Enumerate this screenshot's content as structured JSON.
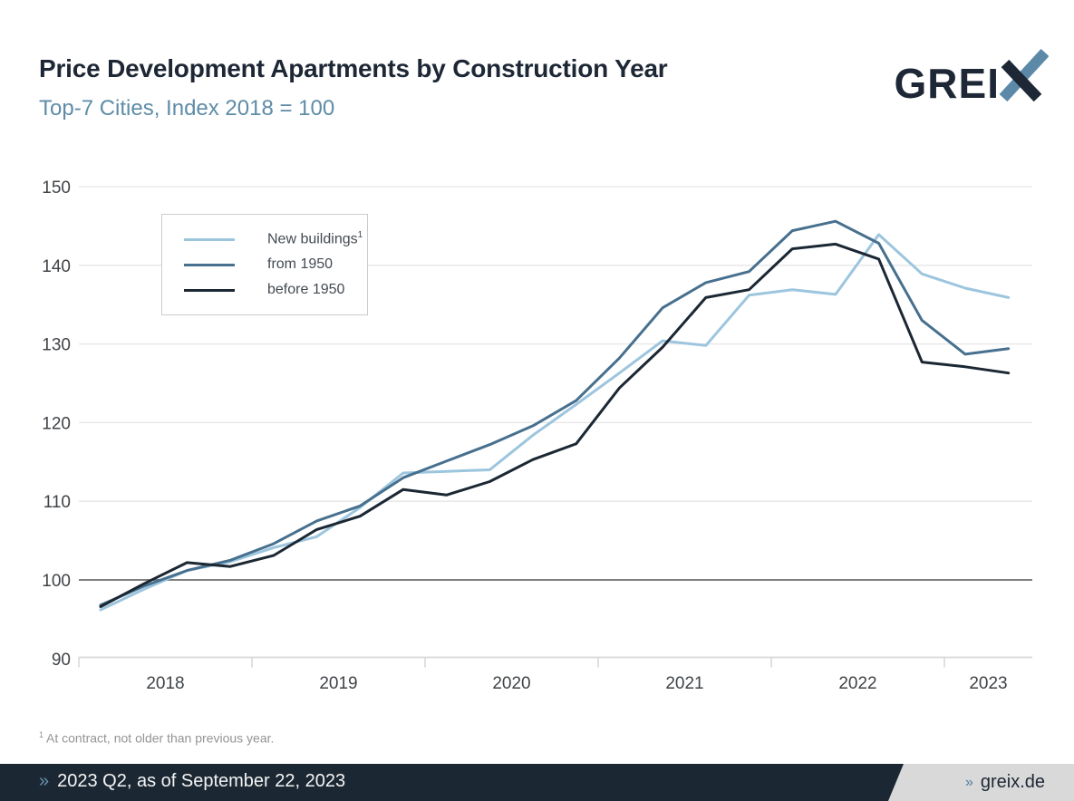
{
  "header": {
    "title": "Price Development Apartments by Construction Year",
    "subtitle": "Top-7 Cities, Index 2018 = 100",
    "logo_text": "GREI",
    "logo_letter": "X"
  },
  "chart_data": {
    "type": "line",
    "x": [
      "2018 Q1",
      "2018 Q2",
      "2018 Q3",
      "2018 Q4",
      "2019 Q1",
      "2019 Q2",
      "2019 Q3",
      "2019 Q4",
      "2020 Q1",
      "2020 Q2",
      "2020 Q3",
      "2020 Q4",
      "2021 Q1",
      "2021 Q2",
      "2021 Q3",
      "2021 Q4",
      "2022 Q1",
      "2022 Q2",
      "2022 Q3",
      "2022 Q4",
      "2023 Q1",
      "2023 Q2"
    ],
    "series": [
      {
        "name": "New buildings",
        "name_sup": "1",
        "color": "#9cc5de",
        "values": [
          96.2,
          98.8,
          101.2,
          102.3,
          104.1,
          105.5,
          109.2,
          113.6,
          113.8,
          114.0,
          118.4,
          122.3,
          126.3,
          130.4,
          129.8,
          136.2,
          136.9,
          136.3,
          143.9,
          138.9,
          137.1,
          135.9
        ]
      },
      {
        "name": "from 1950",
        "name_sup": "",
        "color": "#47708e",
        "values": [
          96.8,
          99.2,
          101.2,
          102.5,
          104.6,
          107.5,
          109.4,
          113.0,
          115.1,
          117.2,
          119.6,
          122.8,
          128.2,
          134.6,
          137.8,
          139.2,
          144.4,
          145.6,
          142.8,
          133.0,
          128.7,
          129.4
        ]
      },
      {
        "name": "before 1950",
        "name_sup": "",
        "color": "#1b2733",
        "values": [
          96.6,
          99.5,
          102.2,
          101.7,
          103.1,
          106.4,
          108.1,
          111.5,
          110.8,
          112.5,
          115.3,
          117.3,
          124.4,
          129.6,
          135.9,
          136.9,
          142.1,
          142.7,
          140.8,
          127.7,
          127.1,
          126.3
        ]
      }
    ],
    "title": "Price Development Apartments by Construction Year",
    "subtitle": "Top-7 Cities, Index 2018 = 100",
    "xlabel": "",
    "ylabel": "",
    "ylim": [
      90,
      150
    ],
    "yticks": [
      90,
      100,
      110,
      120,
      130,
      140,
      150
    ],
    "xticklabels": [
      "2018",
      "2019",
      "2020",
      "2021",
      "2022",
      "2023"
    ],
    "baseline": 100,
    "grid": "horizontal",
    "legend_position": "upper-left"
  },
  "footnote": {
    "sup": "1",
    "text": "At contract, not older than previous year."
  },
  "footer": {
    "left_chevron": "»",
    "left_text": "2023 Q2, as of September 22, 2023",
    "right_chevron": "»",
    "right_text": "greix.de"
  },
  "colors": {
    "title": "#1d2735",
    "subtitle": "#5e8ca8",
    "baseline_grid": "#7f7f7f",
    "grid": "#e6e6e6",
    "footer_bg": "#1b2834",
    "footer_right_bg": "#d9d9d9",
    "accent_blue": "#4f7ea0"
  }
}
